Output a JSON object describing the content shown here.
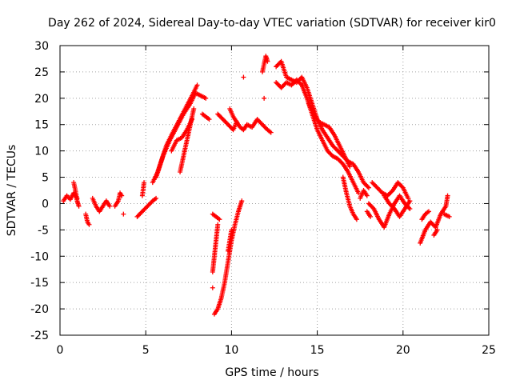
{
  "chart_data": {
    "type": "scatter",
    "title": "Day 262 of 2024, Sidereal Day-to-day VTEC variation (SDTVAR) for receiver kir0",
    "xlabel": "GPS time / hours",
    "ylabel": "SDTVAR / TECUs",
    "xlim": [
      0,
      25
    ],
    "ylim": [
      -25,
      30
    ],
    "xticks": [
      0,
      5,
      10,
      15,
      20,
      25
    ],
    "yticks": [
      -25,
      -20,
      -15,
      -10,
      -5,
      0,
      5,
      10,
      15,
      20,
      25,
      30
    ],
    "grid": true,
    "marker": "+",
    "color": "#ff0000",
    "segments": [
      {
        "x": [
          0.2,
          0.4,
          0.6,
          0.8,
          1.0
        ],
        "y": [
          0.5,
          1.5,
          0.8,
          2.0,
          1.0
        ]
      },
      {
        "x": [
          0.8,
          0.9,
          1.0,
          1.1
        ],
        "y": [
          4.0,
          2.5,
          0.5,
          -0.5
        ]
      },
      {
        "x": [
          1.5,
          1.6,
          1.7
        ],
        "y": [
          -2.0,
          -3.5,
          -4.0
        ]
      },
      {
        "x": [
          1.9,
          2.1,
          2.3,
          2.5,
          2.7,
          2.9
        ],
        "y": [
          1.0,
          -0.5,
          -1.5,
          -0.5,
          0.5,
          -0.5
        ]
      },
      {
        "x": [
          3.2,
          3.4,
          3.5,
          3.6
        ],
        "y": [
          -0.5,
          0.5,
          2.0,
          1.5
        ]
      },
      {
        "x": [
          3.7
        ],
        "y": [
          -2.0
        ]
      },
      {
        "x": [
          4.5,
          4.8,
          5.1,
          5.4,
          5.6
        ],
        "y": [
          -2.5,
          -1.5,
          -0.5,
          0.5,
          1.0
        ]
      },
      {
        "x": [
          4.8,
          4.9
        ],
        "y": [
          1.5,
          4.0
        ]
      },
      {
        "x": [
          5.4,
          5.7,
          6.0,
          6.4,
          6.8,
          7.2,
          7.6,
          7.9,
          8.2,
          8.5
        ],
        "y": [
          4.0,
          6.0,
          9.0,
          12.0,
          14.5,
          17.0,
          19.0,
          21.0,
          20.5,
          20.0
        ]
      },
      {
        "x": [
          5.6,
          5.9,
          6.2,
          6.5,
          6.9,
          7.3,
          7.7,
          8.0
        ],
        "y": [
          5.0,
          8.0,
          11.0,
          13.0,
          15.5,
          18.0,
          20.5,
          22.5
        ]
      },
      {
        "x": [
          6.5,
          6.8,
          7.1,
          7.4,
          7.7
        ],
        "y": [
          10.0,
          12.0,
          12.5,
          14.0,
          16.0
        ]
      },
      {
        "x": [
          7.0,
          7.2,
          7.4,
          7.6,
          7.8
        ],
        "y": [
          6.0,
          9.0,
          12.0,
          15.0,
          18.0
        ]
      },
      {
        "x": [
          8.3,
          8.5,
          8.7
        ],
        "y": [
          17.0,
          16.5,
          16.0
        ]
      },
      {
        "x": [
          9.2,
          9.5,
          9.8,
          10.1,
          10.3,
          10.5,
          10.7,
          10.9,
          11.2,
          11.5,
          11.8,
          12.1,
          12.3
        ],
        "y": [
          17.0,
          16.0,
          15.0,
          14.0,
          15.5,
          14.5,
          14.0,
          15.0,
          14.5,
          16.0,
          15.0,
          14.0,
          13.5
        ]
      },
      {
        "x": [
          9.9,
          10.1,
          10.3
        ],
        "y": [
          18.0,
          16.5,
          15.5
        ]
      },
      {
        "x": [
          10.7
        ],
        "y": [
          24.0
        ]
      },
      {
        "x": [
          9.0,
          9.2,
          9.4,
          9.6,
          9.8,
          10.0,
          10.2,
          10.4,
          10.6
        ],
        "y": [
          -21.0,
          -20.0,
          -18.0,
          -15.0,
          -11.0,
          -7.0,
          -4.0,
          -1.5,
          0.5
        ]
      },
      {
        "x": [
          8.9,
          9.0,
          9.1,
          9.2
        ],
        "y": [
          -13.0,
          -10.0,
          -7.0,
          -4.0
        ]
      },
      {
        "x": [
          8.9,
          9.1,
          9.3
        ],
        "y": [
          -2.0,
          -2.5,
          -3.0
        ]
      },
      {
        "x": [
          8.9
        ],
        "y": [
          -16.0
        ]
      },
      {
        "x": [
          9.8,
          10.0
        ],
        "y": [
          -9.0,
          -5.0
        ]
      },
      {
        "x": [
          11.8,
          12.0,
          12.1
        ],
        "y": [
          25.0,
          28.0,
          27.0
        ]
      },
      {
        "x": [
          11.9
        ],
        "y": [
          20.0
        ]
      },
      {
        "x": [
          12.6,
          12.9,
          13.2,
          13.5,
          13.8,
          14.1,
          14.4,
          14.7,
          15.0,
          15.3,
          15.6,
          15.9,
          16.2,
          16.5,
          16.8,
          17.1,
          17.4,
          17.7,
          18.0
        ],
        "y": [
          26.0,
          27.0,
          24.0,
          23.5,
          23.0,
          24.0,
          22.0,
          19.0,
          16.0,
          14.0,
          12.5,
          11.0,
          10.0,
          9.0,
          8.0,
          7.5,
          6.0,
          4.0,
          3.0
        ]
      },
      {
        "x": [
          12.6,
          12.9,
          13.2,
          13.5,
          13.8,
          14.1,
          14.4,
          14.7,
          15.0,
          15.3,
          15.6,
          15.9,
          16.2,
          16.5,
          16.8,
          17.1,
          17.4
        ],
        "y": [
          23.0,
          22.0,
          23.0,
          22.5,
          23.5,
          22.5,
          20.0,
          17.0,
          14.0,
          12.0,
          10.0,
          9.0,
          8.5,
          7.5,
          6.0,
          4.0,
          2.0
        ]
      },
      {
        "x": [
          14.5,
          14.8,
          15.1,
          15.4,
          15.7,
          16.0,
          16.3,
          16.6,
          16.9
        ],
        "y": [
          19.0,
          17.0,
          15.5,
          15.0,
          14.5,
          13.0,
          11.0,
          9.0,
          7.0
        ]
      },
      {
        "x": [
          16.5,
          16.7,
          16.9,
          17.1,
          17.3
        ],
        "y": [
          5.0,
          2.0,
          -0.5,
          -2.0,
          -3.0
        ]
      },
      {
        "x": [
          17.5,
          17.7,
          17.9
        ],
        "y": [
          1.0,
          2.5,
          1.5
        ]
      },
      {
        "x": [
          18.0,
          18.3,
          18.6,
          18.9,
          19.2,
          19.5,
          19.8,
          20.1,
          20.4
        ],
        "y": [
          0.0,
          -1.0,
          -3.0,
          -4.5,
          -2.0,
          0.0,
          1.5,
          0.0,
          -1.0
        ]
      },
      {
        "x": [
          18.2,
          18.5,
          18.8,
          19.1,
          19.4,
          19.7,
          20.0,
          20.3
        ],
        "y": [
          4.0,
          3.0,
          2.0,
          1.5,
          2.5,
          4.0,
          3.0,
          1.0
        ]
      },
      {
        "x": [
          18.9,
          19.2,
          19.5,
          19.8,
          20.1,
          20.4
        ],
        "y": [
          1.5,
          0.0,
          -1.0,
          -2.5,
          -1.0,
          0.5
        ]
      },
      {
        "x": [
          17.9,
          18.1
        ],
        "y": [
          -1.5,
          -2.5
        ]
      },
      {
        "x": [
          21.0,
          21.3,
          21.6,
          21.9,
          22.2,
          22.5,
          22.6
        ],
        "y": [
          -7.5,
          -5.0,
          -3.5,
          -4.5,
          -2.0,
          -0.5,
          1.5
        ]
      },
      {
        "x": [
          21.1,
          21.3,
          21.5
        ],
        "y": [
          -3.0,
          -2.0,
          -1.5
        ]
      },
      {
        "x": [
          21.8,
          22.0
        ],
        "y": [
          -6.0,
          -5.0
        ]
      },
      {
        "x": [
          22.4,
          22.7
        ],
        "y": [
          -2.0,
          -2.5
        ]
      }
    ]
  }
}
